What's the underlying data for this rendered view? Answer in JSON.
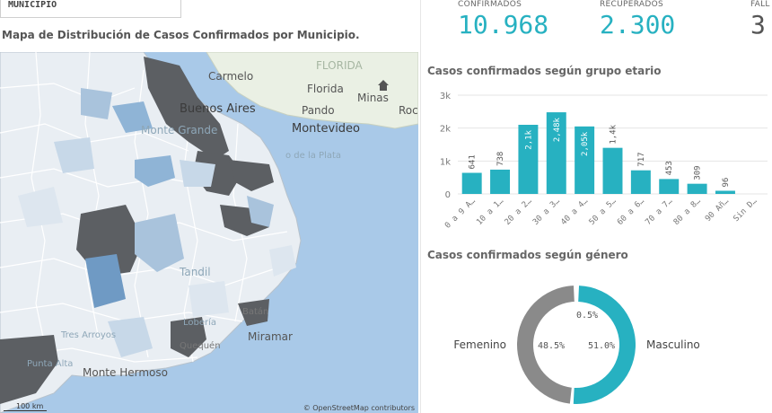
{
  "filter": {
    "label": "MUNICIPIO"
  },
  "map": {
    "title": "Mapa de Distribución de Casos Confirmados por Municipio.",
    "labels": {
      "carmelo": "Carmelo",
      "florida_region": "FLORIDA",
      "florida": "Florida",
      "minas": "Minas",
      "buenos_aires": "Buenos Aires",
      "pando": "Pando",
      "roc": "Roc",
      "montevideo": "Montevideo",
      "monte_grande": "Monte Grande",
      "rio_plata": "o de la Plata",
      "tandil": "Tandil",
      "lobera": "Lobería",
      "batan": "Batán",
      "miramar": "Miramar",
      "tres_arroyos": "Tres Arroyos",
      "quequen": "Quequén",
      "punta_alta": "Punta Alta",
      "monte_hermoso": "Monte Hermoso"
    },
    "scale_label": "100 km",
    "attribution": "© OpenStreetMap contributors"
  },
  "kpis": {
    "confirmados": {
      "label": "CONFIRMADOS",
      "value": "10.968"
    },
    "recuperados": {
      "label": "RECUPERADOS",
      "value": "2.300"
    },
    "fallecidos": {
      "label": "FALL",
      "value": "3"
    }
  },
  "colors": {
    "accent": "#27b1c1",
    "grey": "#8a8a8a",
    "map_dark": "#5c5f63",
    "map_blue": "#8fb4d6",
    "water": "#a9c9e8"
  },
  "chart_data": [
    {
      "type": "bar",
      "title": "Casos confirmados según grupo etario",
      "categories": [
        "0 a 9 A…",
        "10 a 1…",
        "20 a 2…",
        "30 a 3…",
        "40 a 4…",
        "50 a 5…",
        "60 a 6…",
        "70 a 7…",
        "80 a 8…",
        "90 Añ…",
        "Sin D…"
      ],
      "values": [
        641,
        738,
        2100,
        2480,
        2050,
        1400,
        717,
        453,
        309,
        96,
        0
      ],
      "value_labels": [
        "641",
        "738",
        "2,1k",
        "2,48k",
        "2,05k",
        "1,4k",
        "717",
        "453",
        "309",
        "96",
        ""
      ],
      "ylim": [
        0,
        3000
      ],
      "yticks": [
        "0",
        "1k",
        "2k",
        "3k"
      ],
      "grid": true
    },
    {
      "type": "pie",
      "title": "Casos confirmados según género",
      "series": [
        {
          "name": "Masculino",
          "value": 51.0,
          "label": "51.0%",
          "color": "#27b1c1"
        },
        {
          "name": "Femenino",
          "value": 48.5,
          "label": "48.5%",
          "color": "#8a8a8a"
        },
        {
          "name": "",
          "value": 0.5,
          "label": "0.5%",
          "color": "#ffffff"
        }
      ]
    }
  ]
}
